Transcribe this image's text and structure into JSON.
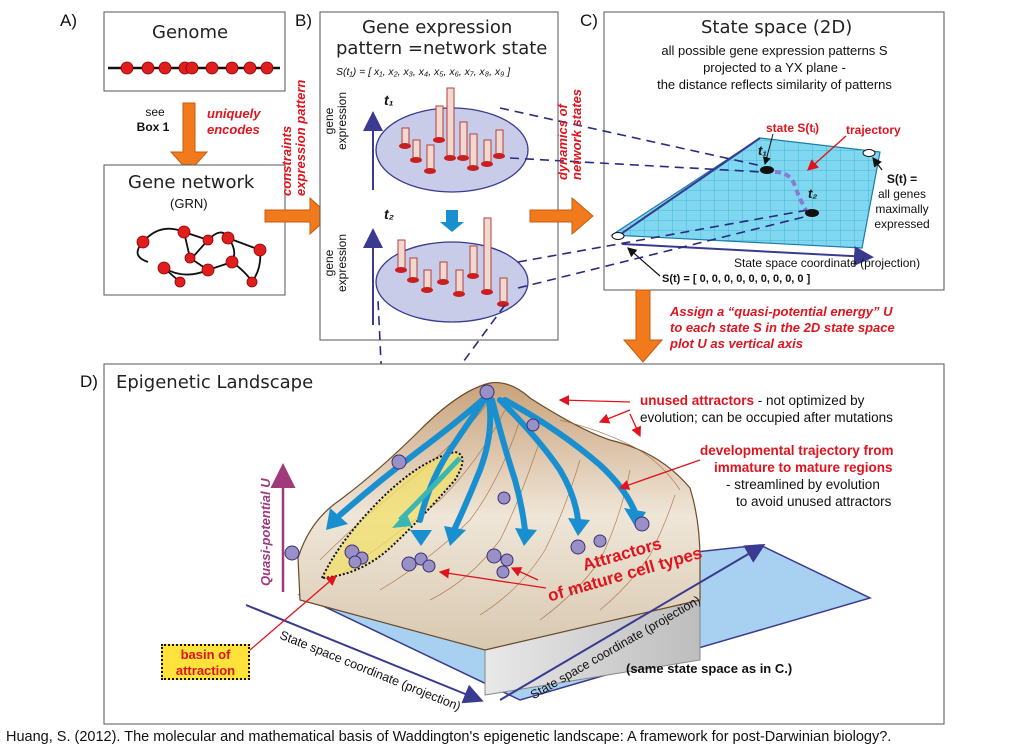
{
  "panels": {
    "a": {
      "letter": "A)",
      "genome_title": "Genome",
      "see_line1": "see",
      "see_line2": "Box 1",
      "encodes_line1": "uniquely",
      "encodes_line2": "encodes",
      "network_title": "Gene network",
      "network_sub": "(GRN)"
    },
    "b": {
      "letter": "B)",
      "title_line1": "Gene expression",
      "title_line2": "pattern =network state",
      "vector_label": "S(t₁) = [ x₁, x₂, x₃, x₄, x₅, x₆, x₇, x₈, x₉ ]",
      "t1": "t₁",
      "t2": "t₂",
      "axis_line1": "gene",
      "axis_line2": "expression",
      "constraints_line1": "constraints",
      "constraints_line2": "expression pattern"
    },
    "c": {
      "letter": "C)",
      "title": "State space (2D)",
      "desc_line1": "all possible gene expression patterns S",
      "desc_line2": "projected to a YX plane -",
      "desc_line3": "the distance reflects similarity of patterns",
      "state_label": "state S(tᵢ)",
      "trajectory_label": "trajectory",
      "t1": "t₁",
      "t2": "t₂",
      "all_genes_line1": "S(t) =",
      "all_genes_line2": "all genes",
      "all_genes_line3": "maximally",
      "all_genes_line4": "expressed",
      "coord_label": "State space coordinate (projection)",
      "zero_vector": "S(t) = [ 0, 0, 0, 0, 0, 0, 0, 0, 0 ]",
      "dynamics_line1": "dynamics of",
      "dynamics_line2": "network states"
    },
    "assign": {
      "line1": "Assign  a “quasi-potential energy” U",
      "line2": "to each state S in the 2D state space",
      "line3": "plot U as vertical axis"
    },
    "d": {
      "letter": "D)",
      "title": "Epigenetic Landscape",
      "unused_bold": "unused attractors",
      "unused_rest": " - not optimized  by",
      "unused_line2": "evolution;  can be occupied after mutations",
      "dev_line1": "developmental  trajectory from",
      "dev_line2": "immature to mature regions",
      "dev_line3": "- streamlined by evolution",
      "dev_line4": "to avoid unused attractors",
      "attractors_line1": "Attractors",
      "attractors_line2": "of mature cell types",
      "quasi_axis": "Quasi-potential U",
      "coord_left": "State space coordinate (projection)",
      "coord_right": "State space coordinate (projection)",
      "same_space": "(same state space as in C.)",
      "basin_line1": "basin of",
      "basin_line2": "attraction"
    }
  },
  "citation": "Huang, S. (2012). The molecular and mathematical basis of Waddington's epigenetic landscape: A framework for post-Darwinian biology?.",
  "colors": {
    "arrow_orange": "#f07a1c",
    "label_red": "#e0141e",
    "node_red": "#e01e1e",
    "grid_cyan": "#7fd8f0",
    "ellipse_blue": "#c8cce8",
    "flow_blue": "#1a8fd0",
    "attractor_purple": "#9a90c8",
    "axis_navy": "#3a3a90"
  }
}
